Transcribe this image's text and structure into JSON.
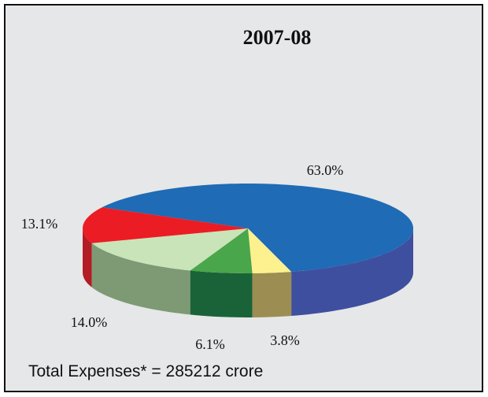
{
  "chart_data": {
    "type": "pie",
    "title": "2007-08",
    "values": [
      63.0,
      3.8,
      6.1,
      14.0,
      13.1
    ],
    "value_labels": [
      "63.0%",
      "3.8%",
      "6.1%",
      "14.0%",
      "13.1%"
    ],
    "colors": [
      "#1f6bb5",
      "#fdf08f",
      "#4aa64a",
      "#c9e4b8",
      "#ec1c24"
    ],
    "side_colors": [
      "#3f4f9f",
      "#9c8d52",
      "#1a6338",
      "#7d9a74",
      "#b31c25"
    ],
    "footnote": "Total Expenses* = 285212 crore"
  }
}
